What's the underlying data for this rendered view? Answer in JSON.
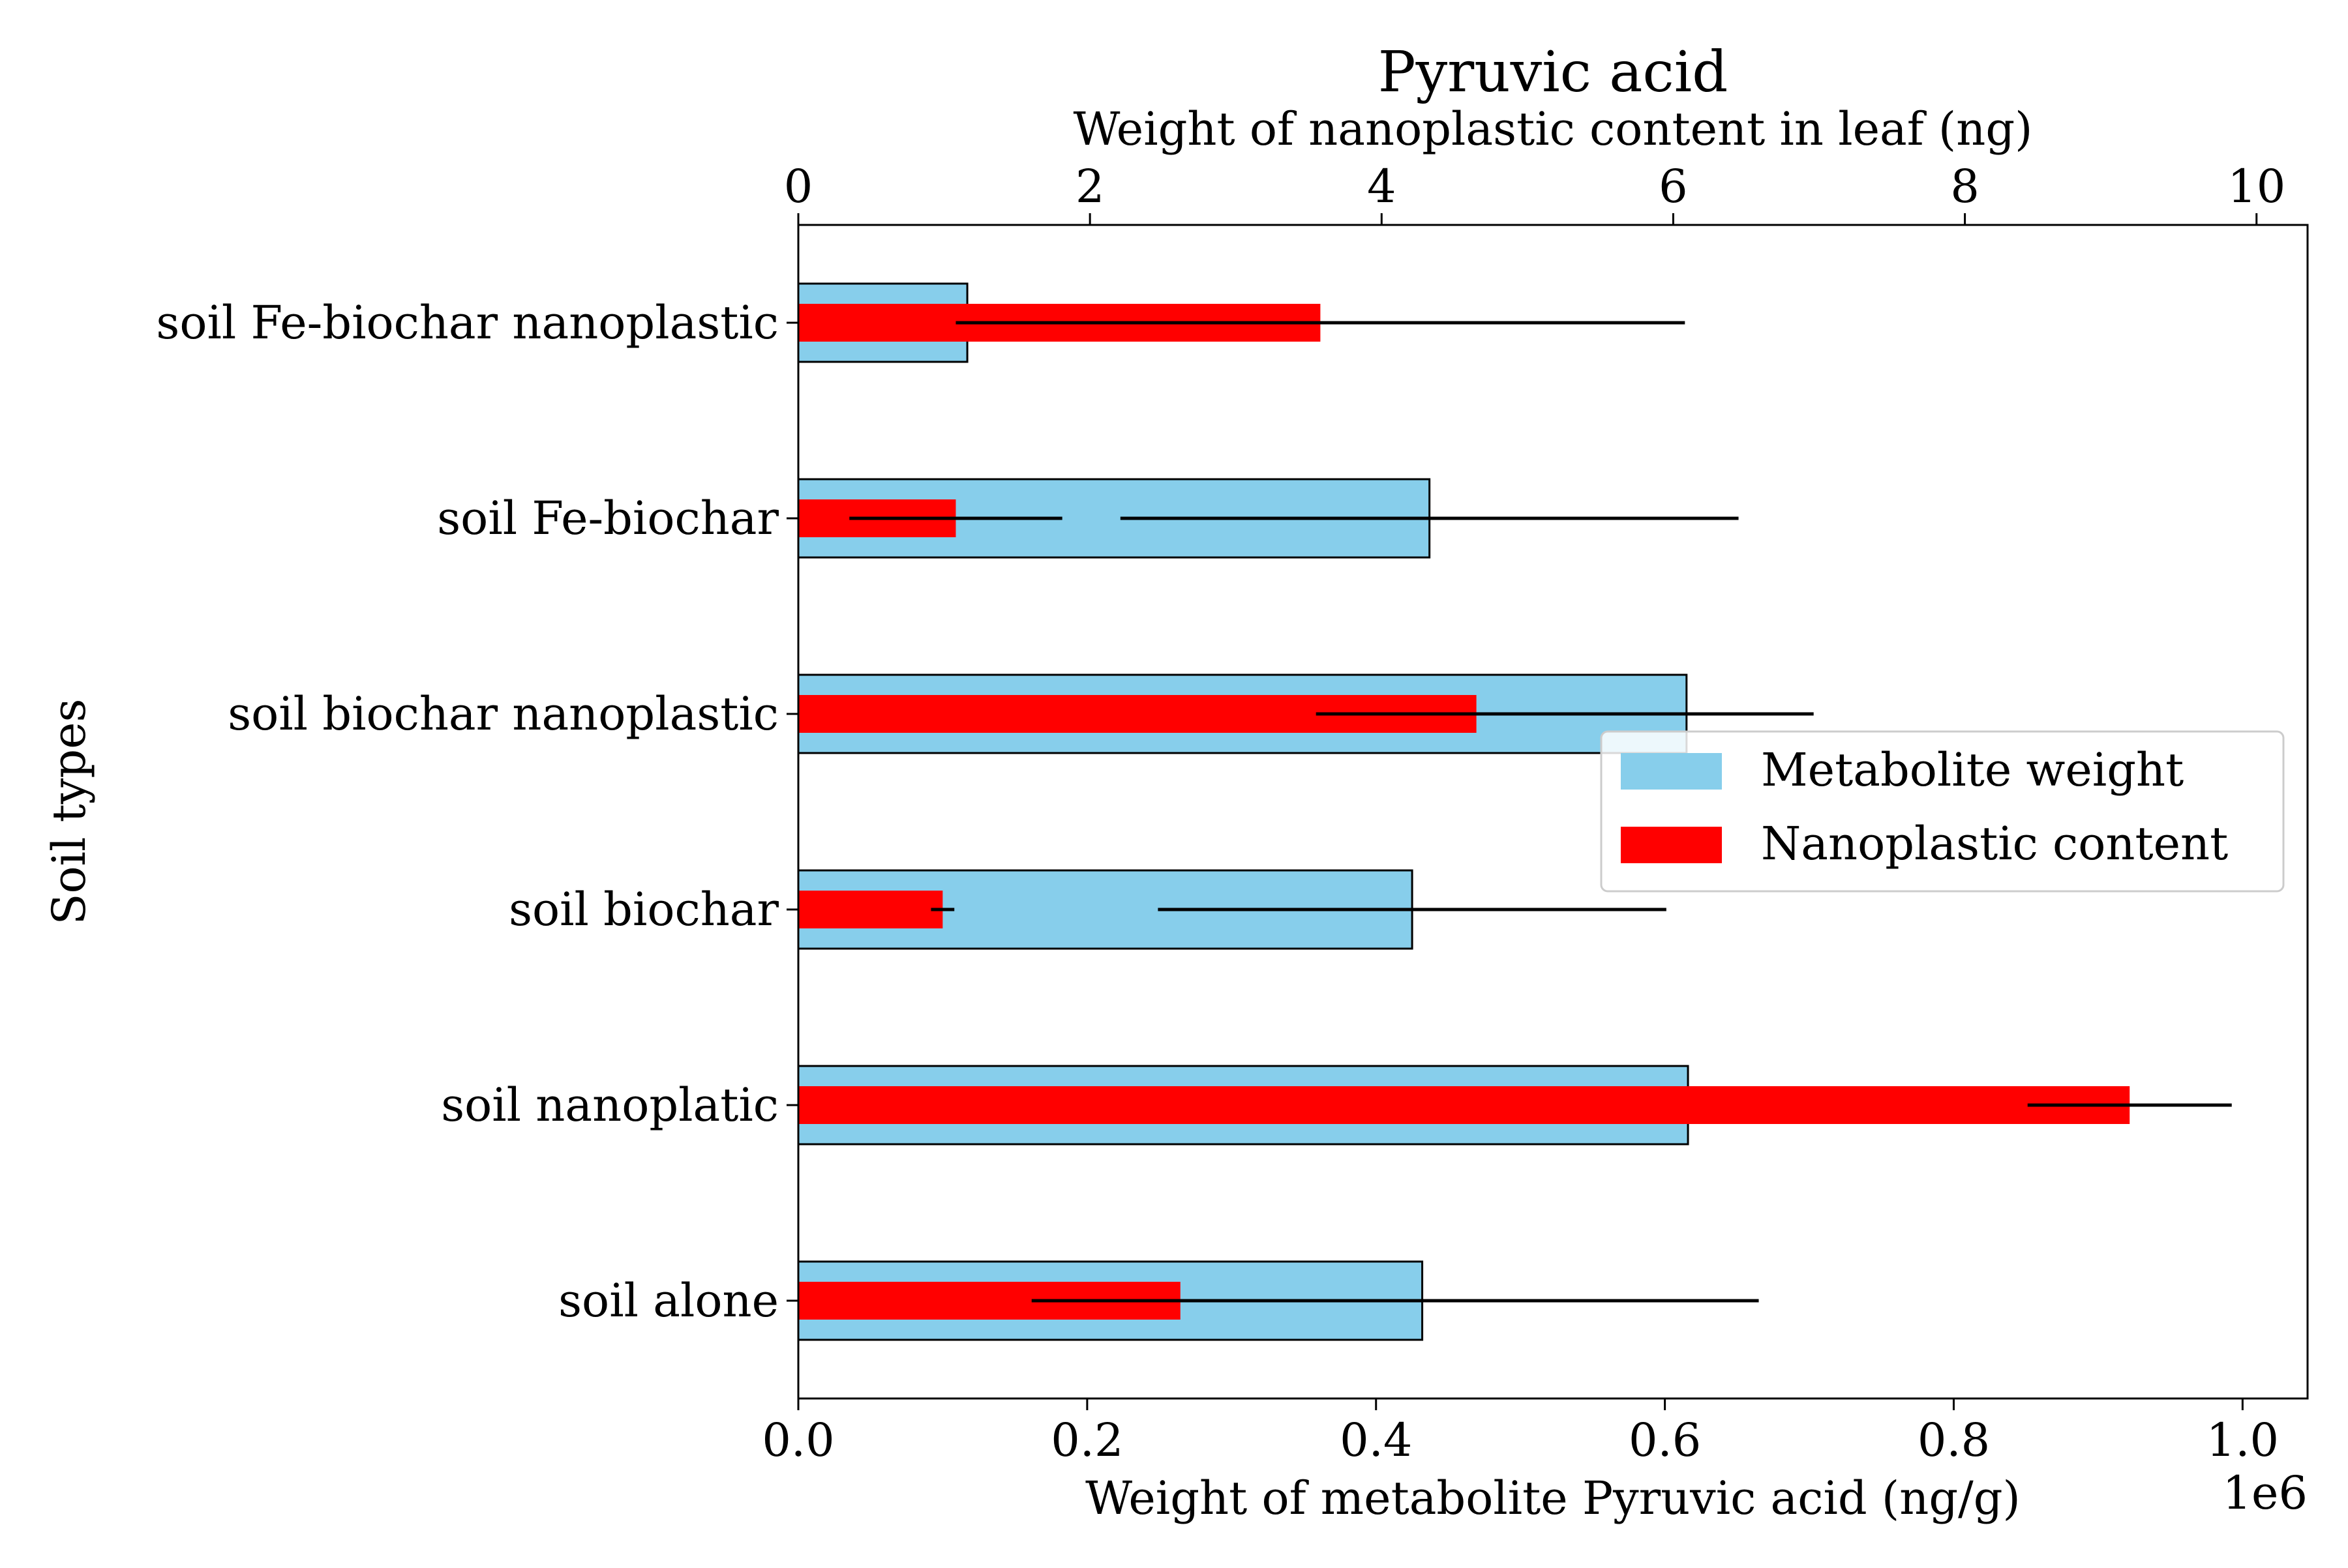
{
  "chart_data": {
    "type": "bar",
    "orientation": "horizontal",
    "title": "Pyruvic acid",
    "title_color": "#a52a2a",
    "ylabel": "Soil types",
    "xlabel_bottom": "Weight of metabolite Pyruvic acid (ng/g)",
    "xlabel_top": "Weight of nanoplastic content in leaf (ng)",
    "x_bottom_offset_text": "1e6",
    "x_bottom_range": [
      0,
      1.045
    ],
    "x_bottom_ticks": [
      "0.0",
      "0.2",
      "0.4",
      "0.6",
      "0.8",
      "1.0"
    ],
    "x_top_range": [
      0,
      10.35
    ],
    "x_top_ticks": [
      "0",
      "2",
      "4",
      "6",
      "8",
      "10"
    ],
    "categories": [
      "soil alone",
      "soil nanoplatic",
      "soil biochar",
      "soil biochar nanoplastic",
      "soil Fe-biochar",
      "soil Fe-biochar nanoplastic"
    ],
    "series": [
      {
        "name": "Metabolite weight",
        "axis": "bottom",
        "color": "#87ceeb",
        "values": [
          0.432,
          0.616,
          0.425,
          0.615,
          0.437,
          0.117
        ],
        "errors": [
          0.233,
          0.0,
          0.176,
          0.088,
          0.214,
          0.0
        ]
      },
      {
        "name": "Nanoplastic content",
        "axis": "top",
        "color": "#ff0000",
        "values": [
          2.62,
          9.13,
          0.99,
          4.65,
          1.08,
          3.58
        ],
        "errors": [
          1.02,
          0.7,
          0.08,
          1.1,
          0.73,
          2.5
        ]
      }
    ],
    "legend_placement": "center-right",
    "grid": false
  }
}
